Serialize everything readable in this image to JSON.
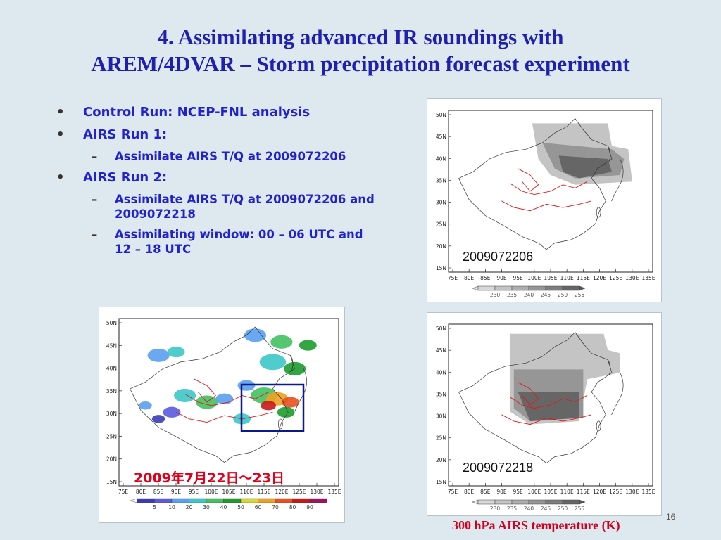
{
  "slide": {
    "title_line1": "4. Assimilating advanced IR soundings with",
    "title_line2": "AREM/4DVAR – Storm precipitation forecast experiment",
    "bullets": [
      {
        "text": "Control Run: NCEP-FNL analysis"
      },
      {
        "text": "AIRS Run 1:"
      },
      {
        "sub": "Assimilate AIRS T/Q at 2009072206"
      },
      {
        "text": "AIRS Run 2:"
      },
      {
        "sub": "Assimilate AIRS T/Q at 2009072206 and 2009072218"
      },
      {
        "sub": "Assimilating window: 00 – 06 UTC and 12 – 18 UTC"
      }
    ],
    "precip_date_label": "2009年7月22日～23日",
    "map_top_date": "2009072206",
    "map_bottom_date": "2009072218",
    "caption": "300 hPa AIRS temperature (K)",
    "slide_number": "16"
  },
  "maps": {
    "lat_labels": [
      "50N",
      "45N",
      "40N",
      "35N",
      "30N",
      "25N",
      "20N",
      "15N"
    ],
    "lon_labels": [
      "75E",
      "80E",
      "85E",
      "90E",
      "95E",
      "100E",
      "105E",
      "110E",
      "115E",
      "120E",
      "125E",
      "130E",
      "135E"
    ],
    "temp_colorbar_labels": [
      "230",
      "235",
      "240",
      "245",
      "250",
      "255"
    ],
    "precip_colorbar_labels": [
      "5",
      "10",
      "20",
      "30",
      "40",
      "50",
      "60",
      "70",
      "80",
      "90"
    ],
    "precip_colors": [
      "#3b3bb5",
      "#5a5ae0",
      "#5aa0f0",
      "#3cc8c8",
      "#44c060",
      "#1c9c2c",
      "#d8d830",
      "#f0a020",
      "#e85020",
      "#c81818",
      "#a01060"
    ],
    "temp_colors": [
      "#d8d8d8",
      "#c4c4c4",
      "#aeaeae",
      "#969696",
      "#7e7e7e",
      "#666666"
    ]
  }
}
